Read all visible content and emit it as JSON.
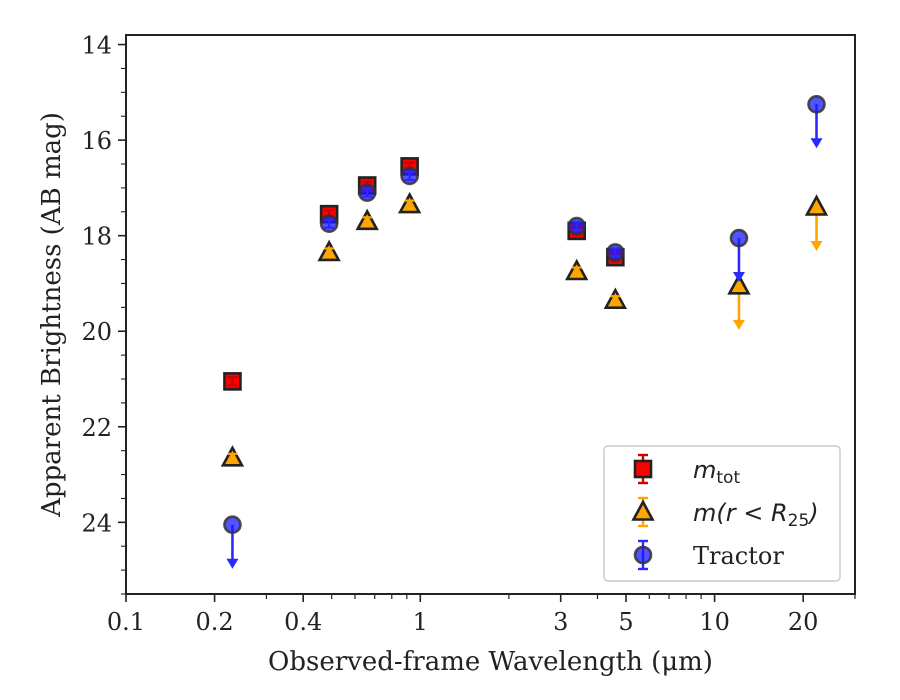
{
  "chart_data": {
    "type": "scatter",
    "title": "",
    "xlabel": "Observed-frame Wavelength (μm)",
    "ylabel": "Apparent Brightness (AB mag)",
    "xscale": "log",
    "xlim": [
      0.1,
      30
    ],
    "ylim": [
      25.5,
      13.8
    ],
    "y_inverted": true,
    "xticks": [
      {
        "value": 0.1,
        "label": "0.1"
      },
      {
        "value": 0.2,
        "label": "0.2"
      },
      {
        "value": 0.4,
        "label": "0.4"
      },
      {
        "value": 1,
        "label": "1"
      },
      {
        "value": 3,
        "label": "3"
      },
      {
        "value": 5,
        "label": "5"
      },
      {
        "value": 10,
        "label": "10"
      },
      {
        "value": 20,
        "label": "20"
      }
    ],
    "yticks": [
      {
        "value": 14,
        "label": "14"
      },
      {
        "value": 16,
        "label": "16"
      },
      {
        "value": 18,
        "label": "18"
      },
      {
        "value": 20,
        "label": "20"
      },
      {
        "value": 22,
        "label": "22"
      },
      {
        "value": 24,
        "label": "24"
      }
    ],
    "legend_position": "lower-right",
    "series": [
      {
        "name": "m_tot",
        "label_main": "m",
        "label_sub": "tot",
        "marker": "square",
        "color": "#ff0000",
        "errcolor": "#cc0000",
        "points": [
          {
            "x": 0.23,
            "y": 21.05
          },
          {
            "x": 0.49,
            "y": 17.55
          },
          {
            "x": 0.66,
            "y": 16.95
          },
          {
            "x": 0.92,
            "y": 16.55
          },
          {
            "x": 3.4,
            "y": 17.9
          },
          {
            "x": 4.6,
            "y": 18.45
          }
        ]
      },
      {
        "name": "m(r < R_25)",
        "label_main": "m(r < R",
        "label_sub": "25",
        "label_tail": ")",
        "marker": "triangle",
        "color": "#ffa500",
        "errcolor": "#ffa500",
        "points": [
          {
            "x": 0.23,
            "y": 22.65
          },
          {
            "x": 0.49,
            "y": 18.35
          },
          {
            "x": 0.66,
            "y": 17.7
          },
          {
            "x": 0.92,
            "y": 17.35
          },
          {
            "x": 3.4,
            "y": 18.75
          },
          {
            "x": 4.6,
            "y": 19.35
          },
          {
            "x": 12.1,
            "y": 19.05,
            "upper_limit": true
          },
          {
            "x": 22.2,
            "y": 17.4,
            "upper_limit": true
          }
        ]
      },
      {
        "name": "Tractor",
        "label_main": "Tractor",
        "marker": "circle",
        "color": "#1a1aff",
        "errcolor": "#2a2aff",
        "points": [
          {
            "x": 0.23,
            "y": 24.05,
            "upper_limit": true
          },
          {
            "x": 0.49,
            "y": 17.75
          },
          {
            "x": 0.66,
            "y": 17.1
          },
          {
            "x": 0.92,
            "y": 16.75
          },
          {
            "x": 3.4,
            "y": 17.8
          },
          {
            "x": 4.6,
            "y": 18.35
          },
          {
            "x": 12.1,
            "y": 18.05,
            "upper_limit": true
          },
          {
            "x": 22.2,
            "y": 15.25,
            "upper_limit": true
          }
        ]
      }
    ]
  }
}
